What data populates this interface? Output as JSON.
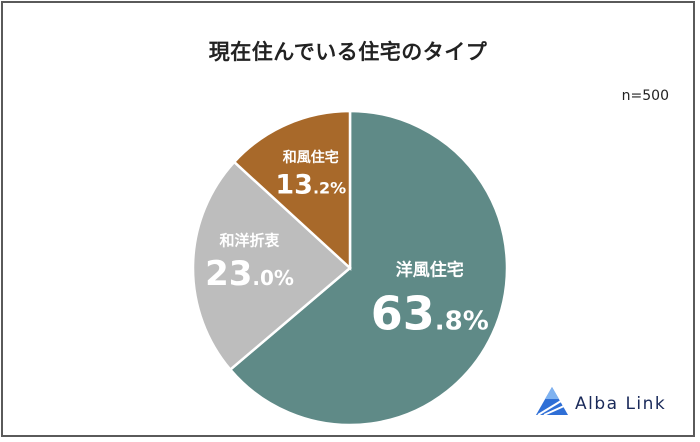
{
  "chart_data": {
    "type": "pie",
    "title": "現在住んでいる住宅のタイプ",
    "sample_size": "n=500",
    "slices": [
      {
        "label": "洋風住宅",
        "value": 63.8,
        "int": "63",
        "dec": ".8%",
        "color": "#5f8a87"
      },
      {
        "label": "和洋折衷",
        "value": 23.0,
        "int": "23",
        "dec": ".0%",
        "color": "#bdbdbd"
      },
      {
        "label": "和風住宅",
        "value": 13.2,
        "int": "13",
        "dec": ".2%",
        "color": "#a8692a"
      }
    ]
  },
  "brand": {
    "name": "Alba Link"
  }
}
